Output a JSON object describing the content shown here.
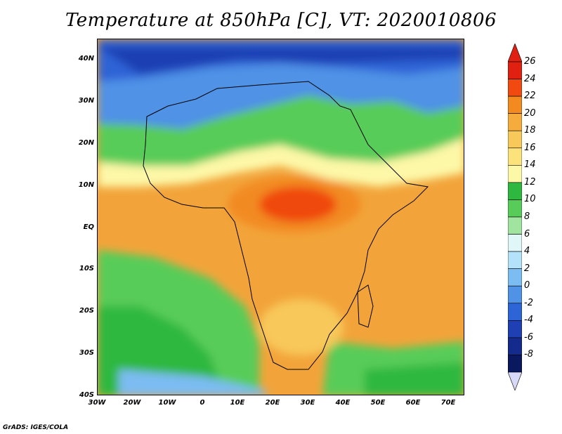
{
  "title": "Temperature at 850hPa [C], VT: 2020010806",
  "footer": "GrADS: IGES/COLA",
  "map": {
    "lat_labels": [
      "40N",
      "30N",
      "20N",
      "10N",
      "EQ",
      "10S",
      "20S",
      "30S",
      "40S"
    ],
    "lon_labels": [
      "30W",
      "20W",
      "10W",
      "0",
      "10E",
      "20E",
      "30E",
      "40E",
      "50E",
      "60E",
      "70E"
    ],
    "lon_range": [
      -30,
      75
    ],
    "lat_range": [
      -40,
      45
    ],
    "units": "C"
  },
  "colorbar": {
    "labels": [
      "26",
      "24",
      "22",
      "20",
      "18",
      "16",
      "14",
      "12",
      "10",
      "8",
      "6",
      "4",
      "2",
      "0",
      "-2",
      "-4",
      "-6",
      "-8"
    ],
    "colors": [
      "#e02010",
      "#f04a10",
      "#f28a20",
      "#f5ac3c",
      "#f8c85a",
      "#fbe27a",
      "#fdf8a8",
      "#2eb840",
      "#58cc58",
      "#a0e4a0",
      "#dff7f7",
      "#b4e2fa",
      "#7bbcf2",
      "#4f92e6",
      "#2d64d6",
      "#1e40b4",
      "#142a8c",
      "#0a1860"
    ],
    "top_color": "#e02010",
    "bottom_color": "#d8d8f8"
  }
}
